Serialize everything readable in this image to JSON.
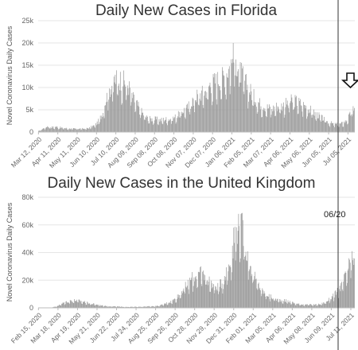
{
  "annotation": {
    "marker_label": "06/20",
    "arrow_icon": "down-arrow-icon"
  },
  "chart_data": [
    {
      "type": "bar",
      "title": "Daily New Cases in Florida",
      "ylabel": "Novel Coronavirus Daily Cases",
      "ylim": [
        0,
        25000
      ],
      "y_ticks": [
        0,
        5000,
        10000,
        15000,
        20000,
        25000
      ],
      "y_tick_labels": [
        "0",
        "5k",
        "10k",
        "15k",
        "20k",
        "25k"
      ],
      "x_tick_labels": [
        "Mar 12, 2020",
        "Apr 11, 2020",
        "May 11, 2020",
        "Jun 10, 2020",
        "Jul 10, 2020",
        "Aug 09, 2020",
        "Sep 08, 2020",
        "Oct 08, 2020",
        "Nov 07, 2020",
        "Dec 07, 2020",
        "Jan 06, 2021",
        "Feb 05, 2021",
        "Mar 07, 2021",
        "Apr 06, 2021",
        "May 06, 2021",
        "Jun 05, 2021",
        "Jul 05, 2021"
      ],
      "grid": true,
      "color": "#999999",
      "weekly_x": [
        "2020-03-12",
        "2020-03-19",
        "2020-03-26",
        "2020-04-02",
        "2020-04-09",
        "2020-04-16",
        "2020-04-23",
        "2020-04-30",
        "2020-05-07",
        "2020-05-14",
        "2020-05-21",
        "2020-05-28",
        "2020-06-04",
        "2020-06-11",
        "2020-06-18",
        "2020-06-25",
        "2020-07-02",
        "2020-07-09",
        "2020-07-16",
        "2020-07-23",
        "2020-07-30",
        "2020-08-06",
        "2020-08-13",
        "2020-08-20",
        "2020-08-27",
        "2020-09-03",
        "2020-09-10",
        "2020-09-17",
        "2020-09-24",
        "2020-10-01",
        "2020-10-08",
        "2020-10-15",
        "2020-10-22",
        "2020-10-29",
        "2020-11-05",
        "2020-11-12",
        "2020-11-19",
        "2020-11-26",
        "2020-12-03",
        "2020-12-10",
        "2020-12-17",
        "2020-12-24",
        "2020-12-31",
        "2021-01-07",
        "2021-01-14",
        "2021-01-21",
        "2021-01-28",
        "2021-02-04",
        "2021-02-11",
        "2021-02-18",
        "2021-02-25",
        "2021-03-04",
        "2021-03-11",
        "2021-03-18",
        "2021-03-25",
        "2021-04-01",
        "2021-04-08",
        "2021-04-15",
        "2021-04-22",
        "2021-04-29",
        "2021-05-06",
        "2021-05-13",
        "2021-05-20",
        "2021-05-27",
        "2021-06-03",
        "2021-06-10",
        "2021-06-17",
        "2021-06-24",
        "2021-07-01",
        "2021-07-08",
        "2021-07-15"
      ],
      "weekly_values": [
        200,
        700,
        1200,
        1000,
        1100,
        900,
        800,
        700,
        700,
        700,
        700,
        800,
        1200,
        1800,
        3500,
        7000,
        9500,
        11000,
        11000,
        10500,
        9500,
        7000,
        5500,
        4000,
        3000,
        2700,
        2700,
        2500,
        2700,
        2700,
        3000,
        3600,
        4500,
        5000,
        6500,
        7500,
        8000,
        8500,
        10000,
        10500,
        11000,
        11500,
        13000,
        15000,
        14500,
        12000,
        10000,
        8500,
        7000,
        6000,
        5500,
        5000,
        5000,
        5500,
        5500,
        6000,
        6500,
        6500,
        6000,
        5500,
        4800,
        4000,
        3500,
        2800,
        2200,
        1800,
        1600,
        1700,
        2200,
        3500,
        5500
      ],
      "peak_value": 20000
    },
    {
      "type": "bar",
      "title": "Daily New Cases in the United Kingdom",
      "ylabel": "Novel Coronavirus Daily Cases",
      "ylim": [
        0,
        80000
      ],
      "y_ticks": [
        0,
        20000,
        40000,
        60000,
        80000
      ],
      "y_tick_labels": [
        "0",
        "20k",
        "40k",
        "60k",
        "80k"
      ],
      "x_tick_labels": [
        "Feb 15, 2020",
        "Mar 18, 2020",
        "Apr 19, 2020",
        "May 21, 2020",
        "Jun 22, 2020",
        "Jul 24, 2020",
        "Aug 25, 2020",
        "Sep 26, 2020",
        "Oct 28, 2020",
        "Nov 29, 2020",
        "Dec 31, 2020",
        "Feb 01, 2021",
        "Mar 05, 2021",
        "Apr 06, 2021",
        "May 08, 2021",
        "Jun 09, 2021",
        "Jul 11, 2021"
      ],
      "grid": true,
      "color": "#999999",
      "weekly_x": [
        "2020-02-15",
        "2020-02-22",
        "2020-02-29",
        "2020-03-07",
        "2020-03-14",
        "2020-03-21",
        "2020-03-28",
        "2020-04-04",
        "2020-04-11",
        "2020-04-18",
        "2020-04-25",
        "2020-05-02",
        "2020-05-09",
        "2020-05-16",
        "2020-05-23",
        "2020-05-30",
        "2020-06-06",
        "2020-06-13",
        "2020-06-20",
        "2020-06-27",
        "2020-07-04",
        "2020-07-11",
        "2020-07-18",
        "2020-07-25",
        "2020-08-01",
        "2020-08-08",
        "2020-08-15",
        "2020-08-22",
        "2020-08-29",
        "2020-09-05",
        "2020-09-12",
        "2020-09-19",
        "2020-09-26",
        "2020-10-03",
        "2020-10-10",
        "2020-10-17",
        "2020-10-24",
        "2020-10-31",
        "2020-11-07",
        "2020-11-14",
        "2020-11-21",
        "2020-11-28",
        "2020-12-05",
        "2020-12-12",
        "2020-12-19",
        "2020-12-26",
        "2021-01-02",
        "2021-01-09",
        "2021-01-16",
        "2021-01-23",
        "2021-01-30",
        "2021-02-06",
        "2021-02-13",
        "2021-02-20",
        "2021-02-27",
        "2021-03-06",
        "2021-03-13",
        "2021-03-20",
        "2021-03-27",
        "2021-04-03",
        "2021-04-10",
        "2021-04-17",
        "2021-04-24",
        "2021-05-01",
        "2021-05-08",
        "2021-05-15",
        "2021-05-22",
        "2021-05-29",
        "2021-06-05",
        "2021-06-12",
        "2021-06-19",
        "2021-06-26",
        "2021-07-03",
        "2021-07-10",
        "2021-07-17"
      ],
      "weekly_values": [
        0,
        0,
        100,
        200,
        800,
        2000,
        3500,
        4500,
        5000,
        5000,
        4500,
        3800,
        3000,
        2500,
        2000,
        1500,
        1200,
        1000,
        900,
        800,
        700,
        650,
        650,
        700,
        800,
        900,
        1000,
        1100,
        1300,
        2000,
        3200,
        4200,
        6000,
        9000,
        13000,
        16000,
        20000,
        22000,
        23000,
        22000,
        18000,
        15000,
        14000,
        17000,
        24000,
        32000,
        50000,
        58000,
        50000,
        35000,
        25000,
        18000,
        13000,
        10000,
        8000,
        6500,
        5500,
        5000,
        4800,
        4000,
        3000,
        2500,
        2300,
        2200,
        2100,
        2200,
        2500,
        3500,
        5500,
        8000,
        11000,
        15000,
        22000,
        30000,
        34000
      ],
      "peak_value": 68000
    }
  ]
}
